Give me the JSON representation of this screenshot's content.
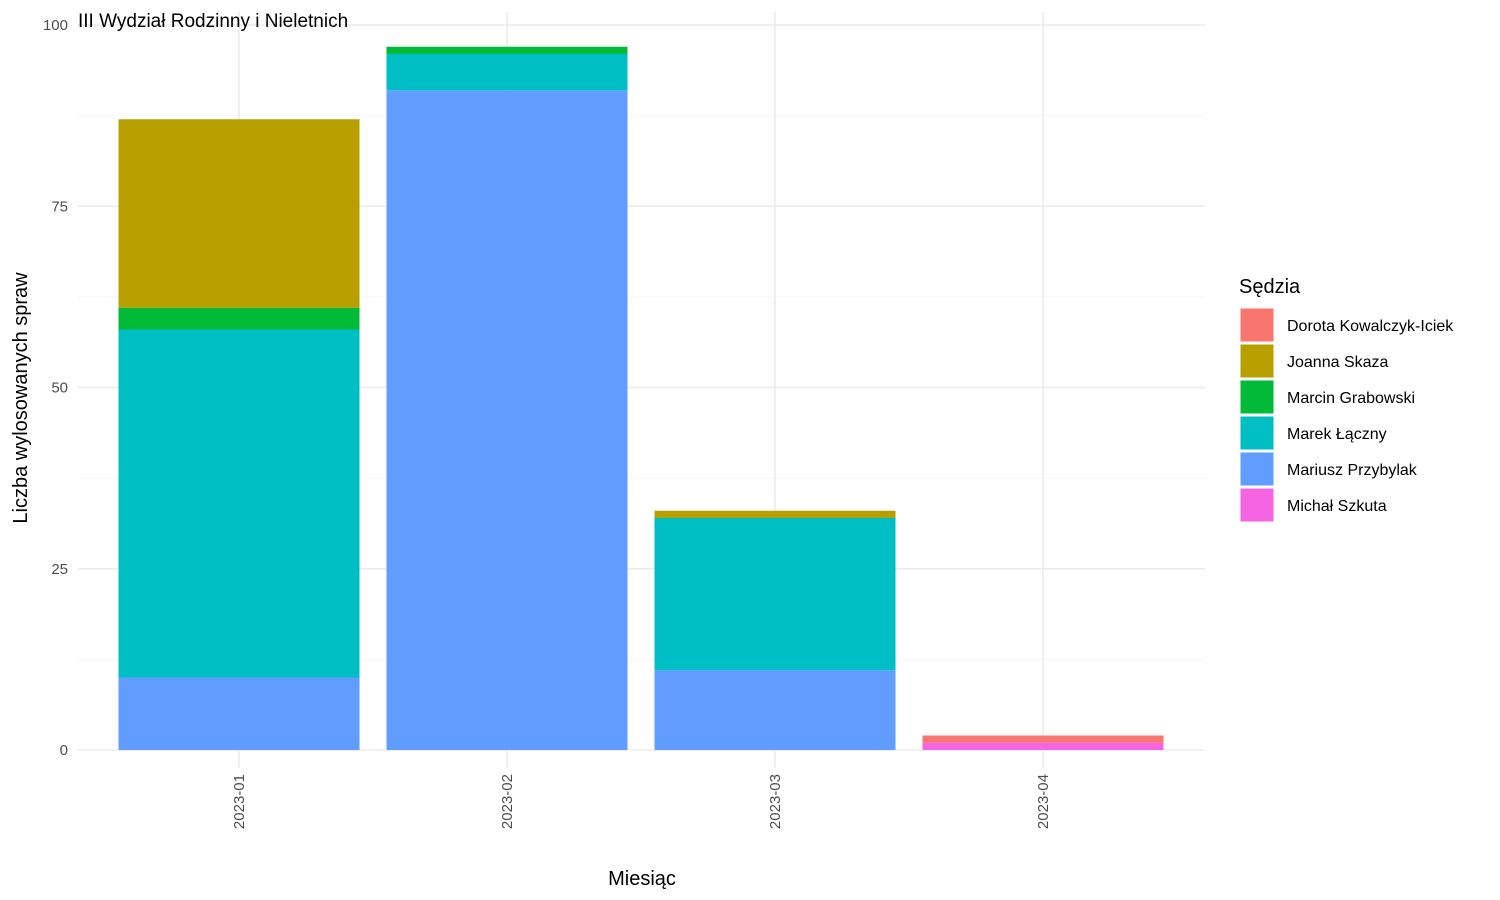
{
  "chart_data": {
    "type": "bar",
    "stacked": true,
    "title": "III Wydział Rodzinny i Nieletnich",
    "xlabel": "Miesiąc",
    "ylabel": "Liczba wylosowanych spraw",
    "ylim": [
      0,
      100
    ],
    "yticks": [
      0,
      25,
      50,
      75,
      100
    ],
    "grid": true,
    "legend_title": "Sędzia",
    "legend_position": "right",
    "categories": [
      "2023-01",
      "2023-02",
      "2023-03",
      "2023-04"
    ],
    "series": [
      {
        "name": "Michał Szkuta",
        "color": "#F564E3",
        "values": [
          0,
          0,
          0,
          1
        ]
      },
      {
        "name": "Mariusz Przybylak",
        "color": "#619CFF",
        "values": [
          10,
          91,
          11,
          0
        ]
      },
      {
        "name": "Marek Łączny",
        "color": "#00BFC4",
        "values": [
          48,
          5,
          21,
          0
        ]
      },
      {
        "name": "Marcin Grabowski",
        "color": "#00BA38",
        "values": [
          3,
          1,
          0,
          0
        ]
      },
      {
        "name": "Joanna Skaza",
        "color": "#B79F00",
        "values": [
          26,
          0,
          1,
          0
        ]
      },
      {
        "name": "Dorota Kowalczyk-Iciek",
        "color": "#F8766D",
        "values": [
          0,
          0,
          0,
          1
        ]
      }
    ],
    "legend_order": [
      "Dorota Kowalczyk-Iciek",
      "Joanna Skaza",
      "Marcin Grabowski",
      "Marek Łączny",
      "Mariusz Przybylak",
      "Michał Szkuta"
    ]
  }
}
